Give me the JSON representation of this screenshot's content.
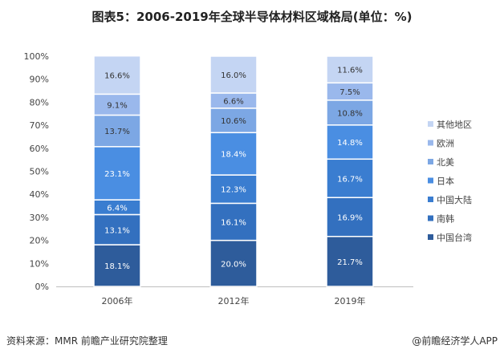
{
  "header": {
    "title": "图表5：2006-2019年全球半导体材料区域格局(单位：%)"
  },
  "footer": {
    "source": "资料来源：MMR 前瞻产业研究院整理",
    "brand": "@前瞻经济学人APP"
  },
  "colors": {
    "中国台湾": "#2e5c9b",
    "南韩": "#3370bf",
    "中国大陆": "#3a7dd0",
    "日本": "#4a8ee2",
    "北美": "#7ca7e4",
    "欧洲": "#9ab8ec",
    "其他地区": "#c4d5f3"
  },
  "chart_data": {
    "type": "bar",
    "stacked": true,
    "categories": [
      "2006年",
      "2012年",
      "2019年"
    ],
    "series": [
      {
        "name": "中国台湾",
        "values": [
          18.1,
          20.0,
          21.7
        ],
        "labels": [
          "18.1%",
          "20.0%",
          "21.7%"
        ]
      },
      {
        "name": "南韩",
        "values": [
          13.1,
          16.1,
          16.9
        ],
        "labels": [
          "13.1%",
          "16.1%",
          "16.9%"
        ]
      },
      {
        "name": "中国大陆",
        "values": [
          6.4,
          12.3,
          16.7
        ],
        "labels": [
          "6.4%",
          "12.3%",
          "16.7%"
        ]
      },
      {
        "name": "日本",
        "values": [
          23.1,
          18.4,
          14.8
        ],
        "labels": [
          "23.1%",
          "18.4%",
          "14.8%"
        ]
      },
      {
        "name": "北美",
        "values": [
          13.7,
          10.6,
          10.8
        ],
        "labels": [
          "13.7%",
          "10.6%",
          "10.8%"
        ]
      },
      {
        "name": "欧洲",
        "values": [
          9.1,
          6.6,
          7.5
        ],
        "labels": [
          "9.1%",
          "6.6%",
          "7.5%"
        ]
      },
      {
        "name": "其他地区",
        "values": [
          16.6,
          16.0,
          11.6
        ],
        "labels": [
          "16.6%",
          "16.0%",
          "11.6%"
        ]
      }
    ],
    "ylim": [
      0,
      100
    ],
    "yticks": [
      "0%",
      "10%",
      "20%",
      "30%",
      "40%",
      "50%",
      "60%",
      "70%",
      "80%",
      "90%",
      "100%"
    ],
    "legend": [
      "其他地区",
      "欧洲",
      "北美",
      "日本",
      "中国大陆",
      "南韩",
      "中国台湾"
    ],
    "legend_position": "right",
    "grid": false
  }
}
